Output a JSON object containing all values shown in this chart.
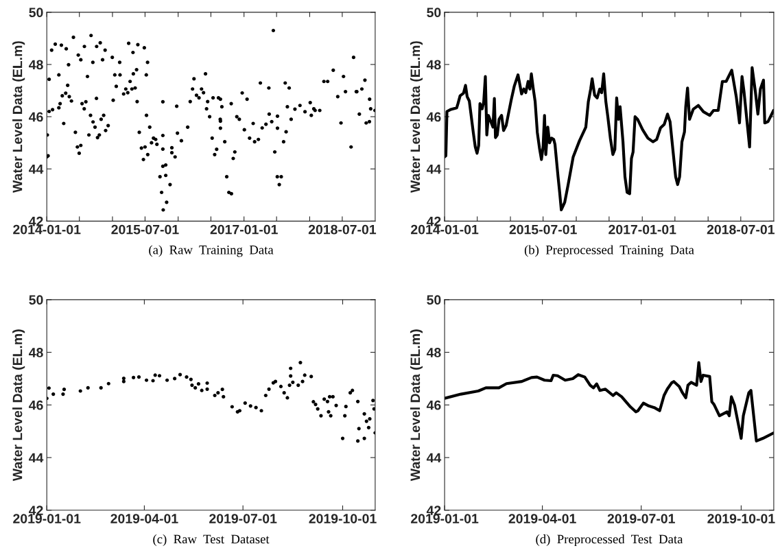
{
  "chart_data": [
    {
      "type": "scatter",
      "title": "(a)  Raw  Training  Data",
      "ylabel": "Water Level Data (EL.m)",
      "marker": "circle",
      "xlim": [
        "2014-01-01",
        "2018-12-31"
      ],
      "ylim": [
        42,
        50
      ],
      "yticks": [
        42,
        44,
        46,
        48,
        50
      ],
      "xticks": [
        "2014-01-01",
        {
          "value": "2014-07-01",
          "label": null
        },
        {
          "value": "2015-01-01",
          "label": null
        },
        "2015-07-01",
        {
          "value": "2016-01-01",
          "label": null
        },
        {
          "value": "2016-07-01",
          "label": null
        },
        "2017-01-01",
        {
          "value": "2017-07-01",
          "label": null
        },
        {
          "value": "2018-01-01",
          "label": null
        },
        "2018-07-01"
      ],
      "series": [
        {
          "color": "#000000",
          "x": [
            "2014-01-01",
            "2014-01-04",
            "2014-01-08",
            "2014-01-14",
            "2014-02-02",
            "2014-03-09",
            "2014-03-16",
            "2014-03-28",
            "2014-04-16",
            "2014-04-27",
            "2014-05-06",
            "2014-05-18",
            "2014-06-09",
            "2014-06-20",
            "2014-06-30",
            "2014-07-09",
            "2014-07-16",
            "2014-07-28",
            "2014-08-06",
            "2014-08-15",
            "2014-08-23",
            "2014-09-01",
            "2014-09-15",
            "2014-09-26",
            "2014-10-04",
            "2014-10-10",
            "2014-10-20",
            "2014-10-30",
            "2014-11-13",
            "2014-11-24",
            "2014-12-08",
            "2015-01-05",
            "2015-01-22",
            "2015-02-12",
            "2015-03-04",
            "2015-03-16",
            "2015-03-27",
            "2015-04-09",
            "2015-04-19",
            "2015-04-27",
            "2015-05-07",
            "2015-05-18",
            "2015-05-30",
            "2015-06-11",
            "2015-06-22",
            "2015-07-01",
            "2015-07-09",
            "2015-07-16",
            "2015-07-27",
            "2015-08-06",
            "2015-08-17",
            "2015-08-29",
            "2015-09-05",
            "2015-09-22",
            "2015-10-01",
            "2015-10-10",
            "2015-10-29",
            "2015-11-17",
            "2015-12-15",
            "2016-01-19",
            "2016-02-23",
            "2016-03-08",
            "2016-03-21",
            "2016-03-29",
            "2016-04-12",
            "2016-04-26",
            "2016-05-10",
            "2016-05-21",
            "2016-06-01",
            "2016-06-13",
            "2016-06-24",
            "2016-07-08",
            "2016-07-22",
            "2016-08-02",
            "2016-08-12",
            "2016-08-22",
            "2016-08-31",
            "2016-09-16",
            "2016-09-27",
            "2016-10-09",
            "2016-10-23",
            "2016-11-02",
            "2016-11-11",
            "2016-11-22",
            "2016-12-06",
            "2017-01-03",
            "2017-02-01",
            "2017-03-01",
            "2017-03-22",
            "2017-04-12",
            "2017-05-03",
            "2017-05-21",
            "2017-06-04",
            "2017-06-21",
            "2017-07-05",
            "2017-07-16",
            "2017-07-27",
            "2017-08-09",
            "2017-08-23",
            "2017-08-30",
            "2017-09-09",
            "2017-09-20",
            "2017-10-11",
            "2017-11-08",
            "2017-12-06",
            "2018-01-10",
            "2018-01-31",
            "2018-02-26",
            "2018-03-21",
            "2018-04-11",
            "2018-05-12",
            "2018-06-06",
            "2018-06-24",
            "2018-07-08",
            "2018-07-19",
            "2018-08-19",
            "2018-09-02",
            "2018-09-20",
            "2018-10-04",
            "2018-10-18",
            "2018-11-04",
            "2018-11-11",
            "2018-11-29",
            "2018-12-30",
            "2014-01-14",
            "2014-01-28",
            "2014-02-17",
            "2014-03-23",
            "2014-04-19",
            "2014-05-29",
            "2014-06-25",
            "2014-07-29",
            "2014-09-04",
            "2014-10-05",
            "2014-10-25",
            "2014-11-21",
            "2014-12-31",
            "2015-02-10",
            "2015-04-01",
            "2015-04-25",
            "2015-05-22",
            "2015-06-27",
            "2015-07-15",
            "2014-03-09",
            "2014-05-02",
            "2014-07-09",
            "2014-09-14",
            "2014-11-07",
            "2015-01-14",
            "2015-05-15",
            "2015-07-08",
            "2014-04-05",
            "2015-10-08",
            "2015-10-08",
            "2015-10-08",
            "2015-10-08",
            "2015-10-24",
            "2015-10-24",
            "2015-11-27",
            "2015-11-27",
            "2015-12-28",
            "2015-12-24",
            "2016-06-07",
            "2016-07-13",
            "2016-08-23",
            "2016-08-23",
            "2016-08-23",
            "2016-10-22",
            "2016-12-22",
            "2017-01-18",
            "2017-02-21",
            "2017-04-02",
            "2017-05-19",
            "2017-06-13",
            "2017-07-06",
            "2017-07-06",
            "2017-08-18",
            "2018-01-04",
            "2018-01-24",
            "2018-09-17",
            "2018-11-30",
            "2018-12-06"
          ],
          "values": [
            44.46,
            45.3,
            44.5,
            46.2,
            46.27,
            46.34,
            46.5,
            46.8,
            46.9,
            47.2,
            46.77,
            46.6,
            45.4,
            44.84,
            44.6,
            44.9,
            46.5,
            46.3,
            46.57,
            47.54,
            45.3,
            46.05,
            45.8,
            45.6,
            46.7,
            45.2,
            45.3,
            45.9,
            46.05,
            45.47,
            45.66,
            46.63,
            47.16,
            47.6,
            46.87,
            47.06,
            46.92,
            47.35,
            47.06,
            47.64,
            47.1,
            46.58,
            45.4,
            44.8,
            44.36,
            44.84,
            46.05,
            44.55,
            45.6,
            45.0,
            45.18,
            45.13,
            44.94,
            43.7,
            43.1,
            42.43,
            42.72,
            43.4,
            44.46,
            45.08,
            45.6,
            46.58,
            47.06,
            47.45,
            46.82,
            46.72,
            47.06,
            46.92,
            47.64,
            46.58,
            46.0,
            45.18,
            44.55,
            44.75,
            46.72,
            45.9,
            46.38,
            45.04,
            43.7,
            43.1,
            43.05,
            44.4,
            44.65,
            46.0,
            45.9,
            45.5,
            45.18,
            45.04,
            45.13,
            45.57,
            45.71,
            46.1,
            45.81,
            44.65,
            43.7,
            43.4,
            43.7,
            45.04,
            45.42,
            46.38,
            47.1,
            45.9,
            46.29,
            46.43,
            46.19,
            46.05,
            46.24,
            46.24,
            47.35,
            47.35,
            47.78,
            46.77,
            45.76,
            47.54,
            46.96,
            44.84,
            48.27,
            46.96,
            46.1,
            47.06,
            47.4,
            45.76,
            45.81,
            46.24,
            47.43,
            48.55,
            48.78,
            48.74,
            48.6,
            49.04,
            48.36,
            48.69,
            49.11,
            48.69,
            48.83,
            48.55,
            48.27,
            48.08,
            48.81,
            48.46,
            48.76,
            48.64,
            48.08,
            47.6,
            47.99,
            48.18,
            48.08,
            48.18,
            47.6,
            47.8,
            47.6,
            45.74,
            46.57,
            45.28,
            44.76,
            44.1,
            44.15,
            43.75,
            44.81,
            44.62,
            45.37,
            46.4,
            46.3,
            46.72,
            46.67,
            45.83,
            45.56,
            46.5,
            46.91,
            46.67,
            45.74,
            47.29,
            47.1,
            49.3,
            46.02,
            45.56,
            47.29,
            46.54,
            46.3,
            46.96,
            46.67,
            46.3
          ]
        }
      ]
    },
    {
      "type": "line",
      "title": "(b)  Preprocessed  Training  Data",
      "ylabel": "Water Level Data (EL.m)",
      "xlim": [
        "2014-01-01",
        "2018-12-31"
      ],
      "ylim": [
        42,
        50
      ],
      "yticks": [
        42,
        44,
        46,
        48,
        50
      ],
      "xticks": [
        "2014-01-01",
        {
          "value": "2014-07-01",
          "label": null
        },
        {
          "value": "2015-01-01",
          "label": null
        },
        "2015-07-01",
        {
          "value": "2016-01-01",
          "label": null
        },
        {
          "value": "2016-07-01",
          "label": null
        },
        "2017-01-01",
        {
          "value": "2017-07-01",
          "label": null
        },
        {
          "value": "2018-01-01",
          "label": null
        },
        "2018-07-01"
      ],
      "series": [
        {
          "color": "#000000",
          "x": [
            "2014-01-01",
            "2014-01-08",
            "2014-01-14",
            "2014-02-02",
            "2014-03-09",
            "2014-03-16",
            "2014-03-28",
            "2014-04-16",
            "2014-04-27",
            "2014-05-06",
            "2014-05-18",
            "2014-06-09",
            "2014-06-20",
            "2014-06-30",
            "2014-07-09",
            "2014-07-16",
            "2014-07-28",
            "2014-08-06",
            "2014-08-15",
            "2014-08-23",
            "2014-09-01",
            "2014-09-15",
            "2014-09-26",
            "2014-10-04",
            "2014-10-10",
            "2014-10-20",
            "2014-10-30",
            "2014-11-13",
            "2014-11-24",
            "2014-12-08",
            "2015-01-05",
            "2015-01-22",
            "2015-02-12",
            "2015-03-04",
            "2015-03-16",
            "2015-03-27",
            "2015-04-09",
            "2015-04-19",
            "2015-04-27",
            "2015-05-07",
            "2015-05-18",
            "2015-05-30",
            "2015-06-11",
            "2015-06-22",
            "2015-07-01",
            "2015-07-09",
            "2015-07-16",
            "2015-07-27",
            "2015-08-06",
            "2015-08-17",
            "2015-08-29",
            "2015-09-05",
            "2015-09-22",
            "2015-10-01",
            "2015-10-10",
            "2015-10-29",
            "2015-11-17",
            "2015-12-15",
            "2016-01-19",
            "2016-02-23",
            "2016-03-08",
            "2016-03-21",
            "2016-03-29",
            "2016-04-12",
            "2016-04-26",
            "2016-05-10",
            "2016-05-21",
            "2016-06-01",
            "2016-06-13",
            "2016-06-24",
            "2016-07-08",
            "2016-07-22",
            "2016-08-02",
            "2016-08-12",
            "2016-08-22",
            "2016-08-31",
            "2016-09-16",
            "2016-09-27",
            "2016-10-09",
            "2016-10-23",
            "2016-11-02",
            "2016-11-11",
            "2016-11-22",
            "2016-12-06",
            "2017-01-03",
            "2017-02-01",
            "2017-03-01",
            "2017-03-22",
            "2017-04-12",
            "2017-05-03",
            "2017-05-21",
            "2017-06-04",
            "2017-06-21",
            "2017-07-05",
            "2017-07-16",
            "2017-07-27",
            "2017-08-09",
            "2017-08-23",
            "2017-08-30",
            "2017-09-09",
            "2017-09-20",
            "2017-10-11",
            "2017-11-08",
            "2017-12-06",
            "2018-01-10",
            "2018-01-31",
            "2018-02-26",
            "2018-03-21",
            "2018-04-11",
            "2018-05-12",
            "2018-06-06",
            "2018-06-24",
            "2018-07-08",
            "2018-07-19",
            "2018-08-19",
            "2018-09-02",
            "2018-09-20",
            "2018-10-04",
            "2018-10-18",
            "2018-11-04",
            "2018-11-11",
            "2018-11-29",
            "2018-12-30"
          ],
          "values": [
            44.46,
            44.5,
            46.2,
            46.27,
            46.34,
            46.5,
            46.8,
            46.9,
            47.2,
            46.77,
            46.6,
            45.4,
            44.84,
            44.6,
            44.9,
            46.5,
            46.3,
            46.57,
            47.54,
            45.3,
            46.05,
            45.8,
            45.6,
            46.7,
            45.2,
            45.3,
            45.9,
            46.05,
            45.47,
            45.66,
            46.63,
            47.16,
            47.6,
            46.87,
            47.06,
            46.92,
            47.35,
            47.06,
            47.64,
            47.1,
            46.58,
            45.4,
            44.8,
            44.36,
            44.84,
            46.05,
            44.55,
            45.6,
            45.0,
            45.18,
            45.13,
            44.94,
            43.7,
            43.1,
            42.43,
            42.72,
            43.4,
            44.46,
            45.08,
            45.6,
            46.58,
            47.06,
            47.45,
            46.82,
            46.72,
            47.06,
            46.92,
            47.64,
            46.58,
            46.0,
            45.18,
            44.55,
            44.75,
            46.72,
            45.9,
            46.38,
            45.04,
            43.7,
            43.1,
            43.05,
            44.4,
            44.65,
            46.0,
            45.9,
            45.5,
            45.18,
            45.04,
            45.13,
            45.57,
            45.71,
            46.1,
            45.81,
            44.65,
            43.7,
            43.4,
            43.7,
            45.04,
            45.42,
            46.38,
            47.1,
            45.9,
            46.29,
            46.43,
            46.19,
            46.05,
            46.24,
            46.24,
            47.35,
            47.35,
            47.78,
            46.77,
            45.76,
            47.54,
            46.96,
            44.84,
            47.88,
            46.96,
            46.1,
            47.06,
            47.4,
            45.76,
            45.81,
            46.24
          ]
        }
      ]
    },
    {
      "type": "scatter",
      "title": "(c)  Raw  Test  Dataset",
      "ylabel": "Water Level Data (EL.m)",
      "marker": "circle",
      "xlim": [
        "2019-01-01",
        "2019-10-31"
      ],
      "ylim": [
        42,
        50
      ],
      "yticks": [
        42,
        44,
        46,
        48,
        50
      ],
      "xticks": [
        "2019-01-01",
        "2019-04-01",
        "2019-07-01",
        "2019-10-01"
      ],
      "series": [
        {
          "color": "#000000",
          "x": [
            "2019-01-01",
            "2019-01-16",
            "2019-02-01",
            "2019-02-08",
            "2019-02-20",
            "2019-02-27",
            "2019-03-13",
            "2019-03-22",
            "2019-03-27",
            "2019-04-03",
            "2019-04-09",
            "2019-04-11",
            "2019-04-15",
            "2019-04-22",
            "2019-04-29",
            "2019-05-04",
            "2019-05-10",
            "2019-05-15",
            "2019-05-18",
            "2019-05-21",
            "2019-05-24",
            "2019-05-29",
            "2019-06-05",
            "2019-06-08",
            "2019-06-13",
            "2019-06-21",
            "2019-06-26",
            "2019-06-28",
            "2019-07-03",
            "2019-07-08",
            "2019-07-13",
            "2019-07-18",
            "2019-07-22",
            "2019-07-25",
            "2019-07-29",
            "2019-07-31",
            "2019-08-05",
            "2019-08-08",
            "2019-08-11",
            "2019-08-13",
            "2019-08-16",
            "2019-08-21",
            "2019-08-23",
            "2019-08-25",
            "2019-08-27",
            "2019-09-02",
            "2019-09-04",
            "2019-09-06",
            "2019-09-11",
            "2019-09-18",
            "2019-09-20",
            "2019-09-22",
            "2019-09-25",
            "2019-10-01",
            "2019-10-03",
            "2019-10-08",
            "2019-10-10",
            "2019-10-15",
            "2019-10-21",
            "2019-10-31",
            "2019-01-03",
            "2019-01-07",
            "2019-01-17",
            "2019-03-13",
            "2019-05-14",
            "2019-05-29",
            "2019-06-12",
            "2019-08-14",
            "2019-08-14",
            "2019-09-14",
            "2019-09-17",
            "2019-09-19",
            "2019-10-04",
            "2019-10-15",
            "2019-10-16",
            "2019-10-21",
            "2019-10-23",
            "2019-10-26",
            "2019-10-29",
            "2019-10-30",
            "2019-10-25",
            "2019-09-08"
          ],
          "values": [
            46.25,
            46.41,
            46.53,
            46.65,
            46.65,
            46.81,
            46.89,
            47.04,
            47.06,
            46.94,
            46.92,
            47.13,
            47.11,
            46.94,
            47.0,
            47.15,
            47.06,
            46.75,
            46.65,
            46.8,
            46.55,
            46.6,
            46.36,
            46.46,
            46.31,
            45.93,
            45.74,
            45.78,
            46.07,
            45.96,
            45.9,
            45.78,
            46.36,
            46.6,
            46.84,
            46.89,
            46.7,
            46.46,
            46.27,
            46.75,
            46.86,
            46.75,
            47.61,
            46.89,
            47.13,
            47.08,
            46.12,
            46.02,
            45.59,
            45.74,
            45.59,
            46.31,
            45.98,
            44.73,
            45.59,
            46.46,
            46.55,
            44.63,
            44.73,
            44.94,
            46.64,
            46.41,
            46.59,
            47.01,
            46.97,
            46.83,
            46.59,
            47.39,
            47.1,
            46.22,
            46.13,
            46.31,
            45.94,
            46.13,
            45.1,
            45.66,
            45.38,
            45.47,
            46.17,
            45.85,
            45.14,
            45.85
          ]
        }
      ]
    },
    {
      "type": "line",
      "title": "(d)  Preprocessed  Test  Data",
      "ylabel": "Water Level Data (EL.m)",
      "xlim": [
        "2019-01-01",
        "2019-10-31"
      ],
      "ylim": [
        42,
        50
      ],
      "yticks": [
        42,
        44,
        46,
        48,
        50
      ],
      "xticks": [
        "2019-01-01",
        "2019-04-01",
        "2019-07-01",
        "2019-10-01"
      ],
      "series": [
        {
          "color": "#000000",
          "x": [
            "2019-01-01",
            "2019-01-16",
            "2019-02-01",
            "2019-02-08",
            "2019-02-20",
            "2019-02-27",
            "2019-03-13",
            "2019-03-22",
            "2019-03-27",
            "2019-04-03",
            "2019-04-09",
            "2019-04-11",
            "2019-04-15",
            "2019-04-22",
            "2019-04-29",
            "2019-05-04",
            "2019-05-10",
            "2019-05-15",
            "2019-05-18",
            "2019-05-21",
            "2019-05-24",
            "2019-05-29",
            "2019-06-05",
            "2019-06-08",
            "2019-06-13",
            "2019-06-21",
            "2019-06-26",
            "2019-06-28",
            "2019-07-03",
            "2019-07-08",
            "2019-07-13",
            "2019-07-18",
            "2019-07-22",
            "2019-07-25",
            "2019-07-29",
            "2019-07-31",
            "2019-08-05",
            "2019-08-08",
            "2019-08-11",
            "2019-08-13",
            "2019-08-16",
            "2019-08-21",
            "2019-08-23",
            "2019-08-25",
            "2019-08-27",
            "2019-09-02",
            "2019-09-04",
            "2019-09-06",
            "2019-09-11",
            "2019-09-18",
            "2019-09-20",
            "2019-09-22",
            "2019-09-25",
            "2019-10-01",
            "2019-10-03",
            "2019-10-08",
            "2019-10-10",
            "2019-10-15",
            "2019-10-21",
            "2019-10-31"
          ],
          "values": [
            46.25,
            46.41,
            46.53,
            46.65,
            46.65,
            46.81,
            46.89,
            47.04,
            47.06,
            46.94,
            46.92,
            47.13,
            47.11,
            46.94,
            47.0,
            47.15,
            47.06,
            46.75,
            46.65,
            46.8,
            46.55,
            46.6,
            46.36,
            46.46,
            46.31,
            45.93,
            45.74,
            45.78,
            46.07,
            45.96,
            45.9,
            45.78,
            46.36,
            46.6,
            46.84,
            46.89,
            46.7,
            46.46,
            46.27,
            46.75,
            46.86,
            46.75,
            47.61,
            46.89,
            47.13,
            47.08,
            46.12,
            46.02,
            45.59,
            45.74,
            45.59,
            46.31,
            45.98,
            44.73,
            45.59,
            46.46,
            46.55,
            44.63,
            44.73,
            44.94
          ]
        }
      ]
    }
  ]
}
